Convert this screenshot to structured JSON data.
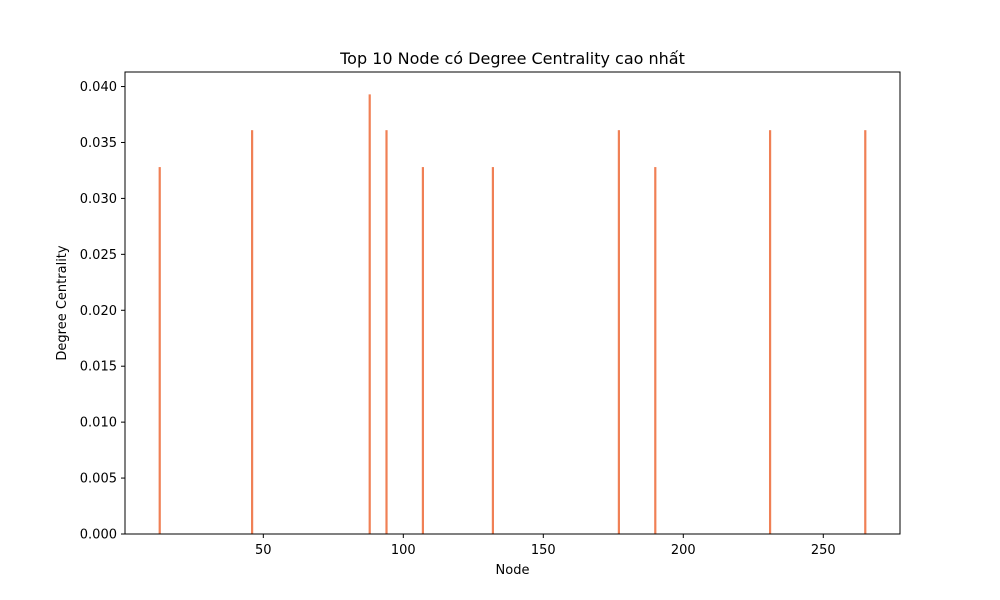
{
  "chart_data": {
    "type": "bar",
    "title": "Top 10 Node có Degree Centrality cao nhất",
    "xlabel": "Node",
    "ylabel": "Degree Centrality",
    "xlim": [
      0.6,
      277.4
    ],
    "ylim": [
      0,
      0.0413
    ],
    "xticks": [
      {
        "value": 50,
        "label": "50"
      },
      {
        "value": 100,
        "label": "100"
      },
      {
        "value": 150,
        "label": "150"
      },
      {
        "value": 200,
        "label": "200"
      },
      {
        "value": 250,
        "label": "250"
      }
    ],
    "yticks": [
      {
        "value": 0.0,
        "label": "0.000"
      },
      {
        "value": 0.005,
        "label": "0.005"
      },
      {
        "value": 0.01,
        "label": "0.010"
      },
      {
        "value": 0.015,
        "label": "0.015"
      },
      {
        "value": 0.02,
        "label": "0.020"
      },
      {
        "value": 0.025,
        "label": "0.025"
      },
      {
        "value": 0.03,
        "label": "0.030"
      },
      {
        "value": 0.035,
        "label": "0.035"
      },
      {
        "value": 0.04,
        "label": "0.040"
      }
    ],
    "bar_color": "#f08055",
    "grid": false,
    "x": [
      13,
      46,
      88,
      94,
      107,
      132,
      177,
      190,
      231,
      265
    ],
    "values": [
      0.0328,
      0.0361,
      0.0393,
      0.0361,
      0.0328,
      0.0328,
      0.0361,
      0.0328,
      0.0361,
      0.0361
    ]
  }
}
